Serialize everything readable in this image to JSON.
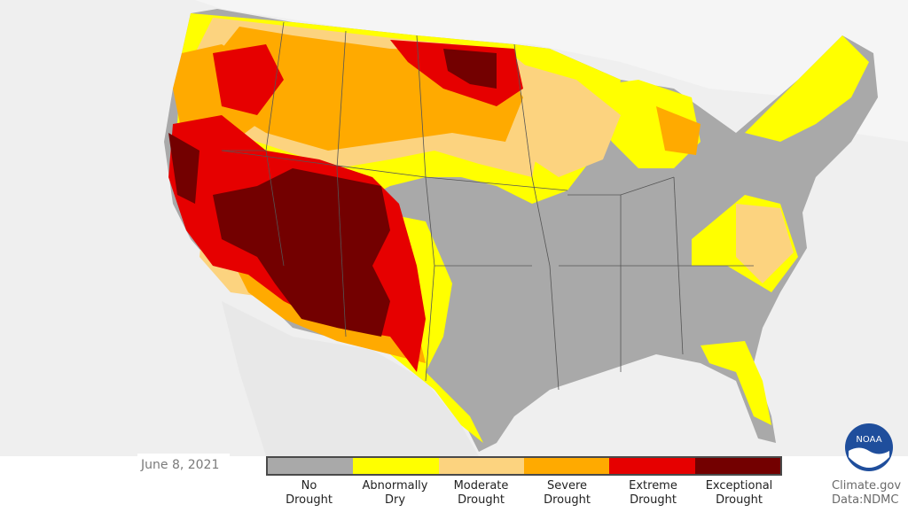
{
  "date": "June 8, 2021",
  "legend": [
    {
      "label": "No\nDrought",
      "color": "#a9a9a9"
    },
    {
      "label": "Abnormally\nDry",
      "color": "#ffff00"
    },
    {
      "label": "Moderate\nDrought",
      "color": "#fcd37f"
    },
    {
      "label": "Severe\nDrought",
      "color": "#ffaa00"
    },
    {
      "label": "Extreme\nDrought",
      "color": "#e60000"
    },
    {
      "label": "Exceptional\nDrought",
      "color": "#730000"
    }
  ],
  "credit": "Climate.gov\nData:NDMC",
  "logo_text": "NOAA"
}
